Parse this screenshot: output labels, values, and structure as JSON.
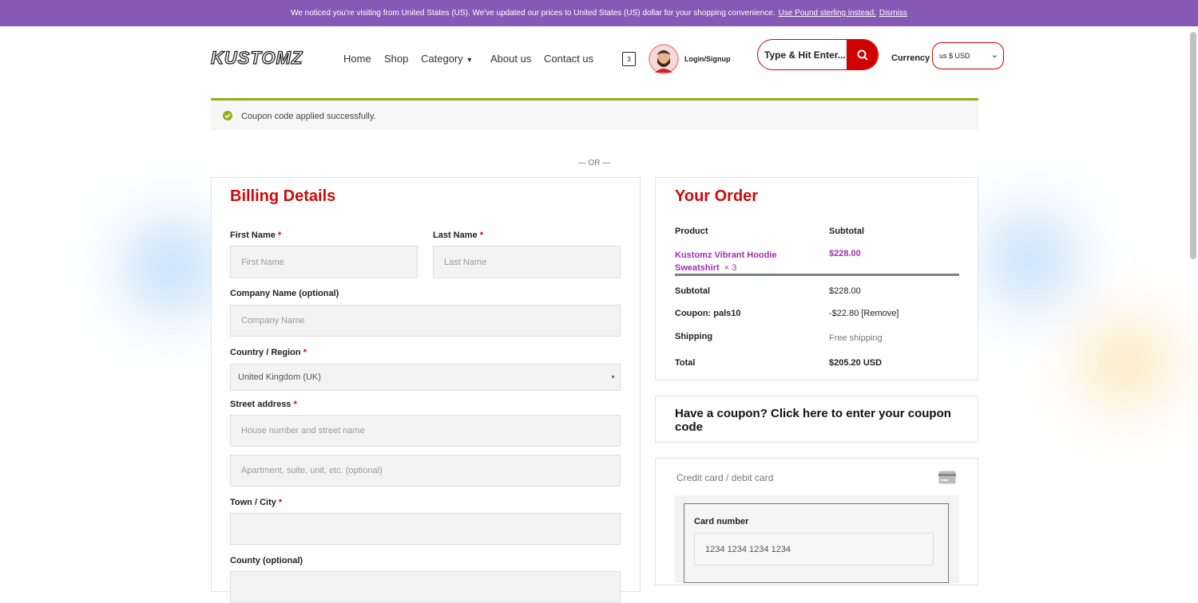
{
  "notice": {
    "message": "We noticed you're visiting from United States (US). We've updated our prices to United States (US) dollar for your shopping convenience.",
    "switch_link": "Use Pound sterling instead.",
    "dismiss": "Dismiss"
  },
  "header": {
    "logo": "KUSTOMZ",
    "nav": [
      "Home",
      "Shop",
      "Category",
      "About us",
      "Contact us"
    ],
    "cart_count": "3",
    "login": "Login/Signup",
    "search_placeholder": "Type & Hit Enter...",
    "currency_label": "Currency",
    "currency_value": "us $ USD"
  },
  "message": "Coupon code applied successfully.",
  "separator": "— OR —",
  "billing": {
    "title": "Billing Details",
    "required_mark": "*",
    "first_name": {
      "label": "First Name",
      "placeholder": "First Name"
    },
    "last_name": {
      "label": "Last Name",
      "placeholder": "Last Name"
    },
    "company": {
      "label": "Company Name (optional)",
      "placeholder": "Company Name"
    },
    "country": {
      "label": "Country / Region",
      "value": "United Kingdom (UK)"
    },
    "street": {
      "label": "Street address",
      "placeholder": "House number and street name",
      "placeholder2": "Apartment, suite, unit, etc. (optional)"
    },
    "town": {
      "label": "Town / City"
    },
    "county": {
      "label": "County (optional)"
    }
  },
  "order": {
    "title": "Your Order",
    "head": [
      "Product",
      "Subtotal"
    ],
    "item": {
      "name": "Kustomz Vibrant Hoodie Sweatshirt",
      "qty": "× 3",
      "price": "$228.00"
    },
    "rows": [
      [
        "Subtotal",
        "$228.00"
      ],
      [
        "Coupon: pals10",
        "-$22.80 [Remove]"
      ],
      [
        "Shipping",
        "Free shipping"
      ],
      [
        "Total",
        "$205.20 USD"
      ]
    ]
  },
  "coupon": {
    "lead": "Have a coupon?",
    "link": "Click here to enter your coupon code"
  },
  "payment": {
    "method": "Credit card / debit card",
    "card_label": "Card number",
    "card_placeholder": "1234 1234 1234 1234"
  }
}
